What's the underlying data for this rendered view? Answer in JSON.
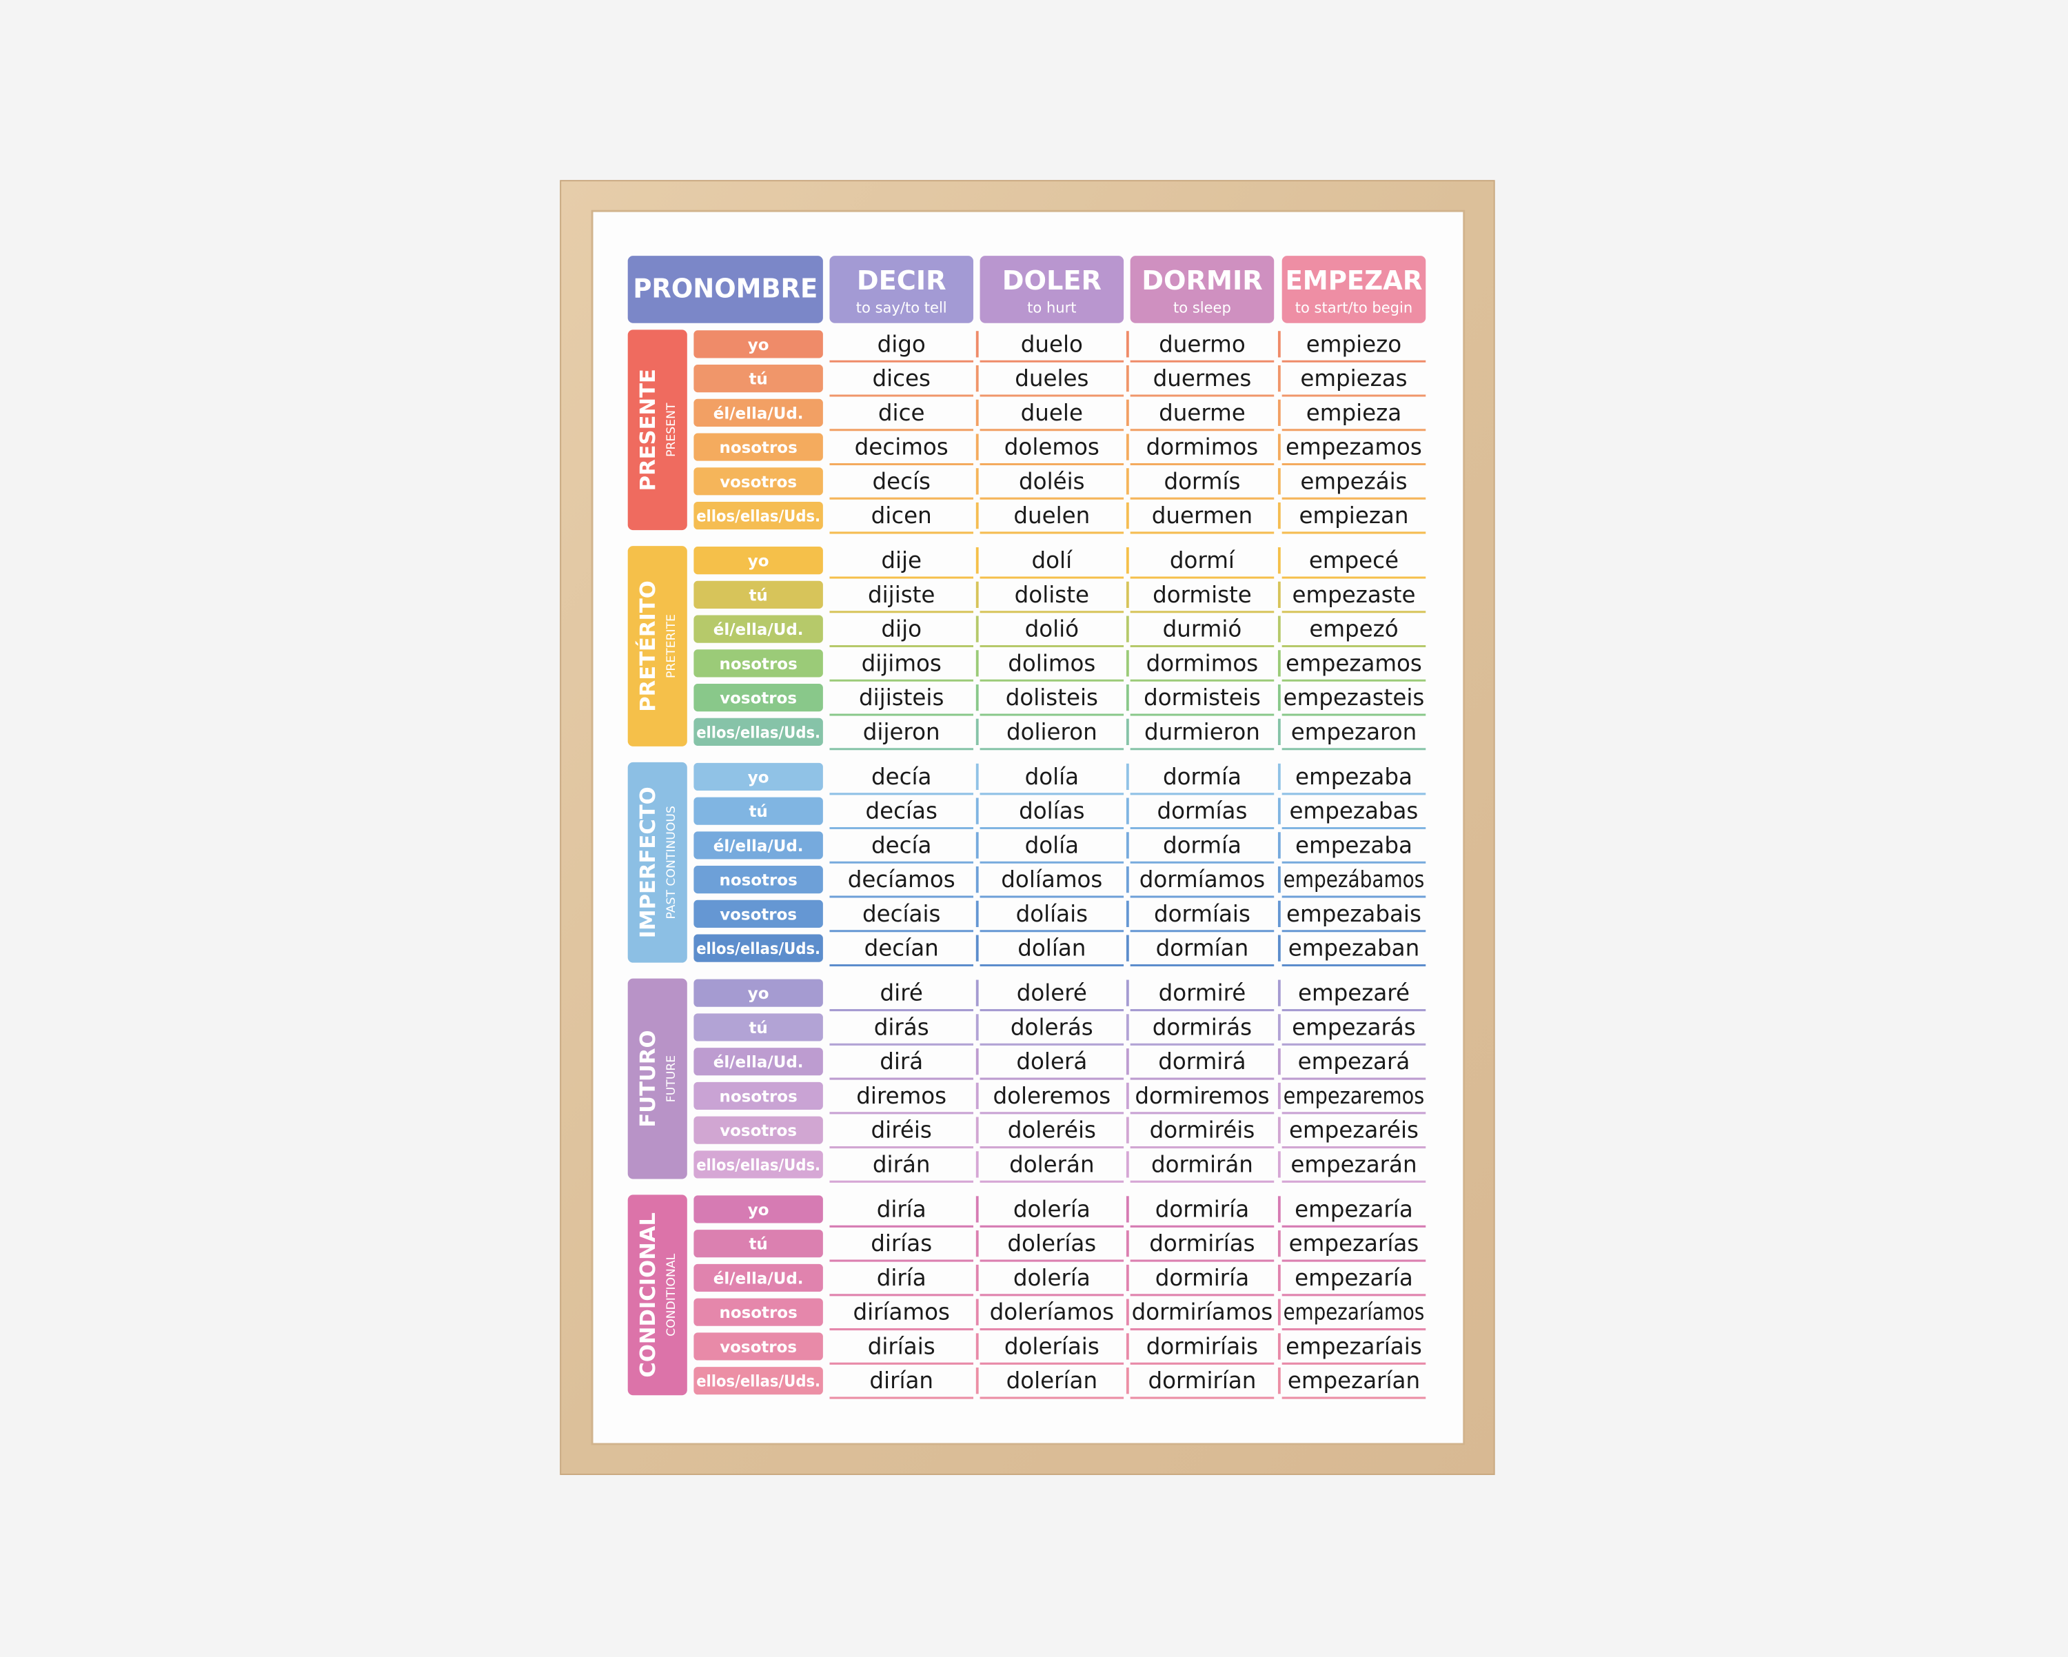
{
  "header": {
    "pronoun_title": "PRONOMBRE",
    "verbs": [
      {
        "name": "DECIR",
        "translation": "to say/to tell"
      },
      {
        "name": "DOLER",
        "translation": "to hurt"
      },
      {
        "name": "DORMIR",
        "translation": "to sleep"
      },
      {
        "name": "EMPEZAR",
        "translation": "to start/to begin"
      }
    ]
  },
  "tenses": [
    {
      "name": "PRESENTE",
      "english": "PRESENT",
      "rows": [
        {
          "pronoun": "yo",
          "forms": [
            "digo",
            "duelo",
            "duermo",
            "empiezo"
          ]
        },
        {
          "pronoun": "tú",
          "forms": [
            "dices",
            "dueles",
            "duermes",
            "empiezas"
          ]
        },
        {
          "pronoun": "él/ella/Ud.",
          "forms": [
            "dice",
            "duele",
            "duerme",
            "empieza"
          ]
        },
        {
          "pronoun": "nosotros",
          "forms": [
            "decimos",
            "dolemos",
            "dormimos",
            "empezamos"
          ]
        },
        {
          "pronoun": "vosotros",
          "forms": [
            "decís",
            "doléis",
            "dormís",
            "empezáis"
          ]
        },
        {
          "pronoun": "ellos/ellas/Uds.",
          "forms": [
            "dicen",
            "duelen",
            "duermen",
            "empiezan"
          ]
        }
      ]
    },
    {
      "name": "PRETÉRITO",
      "english": "PRETERITE",
      "rows": [
        {
          "pronoun": "yo",
          "forms": [
            "dije",
            "dolí",
            "dormí",
            "empecé"
          ]
        },
        {
          "pronoun": "tú",
          "forms": [
            "dijiste",
            "doliste",
            "dormiste",
            "empezaste"
          ]
        },
        {
          "pronoun": "él/ella/Ud.",
          "forms": [
            "dijo",
            "dolió",
            "durmió",
            "empezó"
          ]
        },
        {
          "pronoun": "nosotros",
          "forms": [
            "dijimos",
            "dolimos",
            "dormimos",
            "empezamos"
          ]
        },
        {
          "pronoun": "vosotros",
          "forms": [
            "dijisteis",
            "dolisteis",
            "dormisteis",
            "empezasteis"
          ]
        },
        {
          "pronoun": "ellos/ellas/Uds.",
          "forms": [
            "dijeron",
            "dolieron",
            "durmieron",
            "empezaron"
          ]
        }
      ]
    },
    {
      "name": "IMPERFECTO",
      "english": "PAST CONTINUOUS",
      "rows": [
        {
          "pronoun": "yo",
          "forms": [
            "decía",
            "dolía",
            "dormía",
            "empezaba"
          ]
        },
        {
          "pronoun": "tú",
          "forms": [
            "decías",
            "dolías",
            "dormías",
            "empezabas"
          ]
        },
        {
          "pronoun": "él/ella/Ud.",
          "forms": [
            "decía",
            "dolía",
            "dormía",
            "empezaba"
          ]
        },
        {
          "pronoun": "nosotros",
          "forms": [
            "decíamos",
            "dolíamos",
            "dormíamos",
            "empezábamos"
          ]
        },
        {
          "pronoun": "vosotros",
          "forms": [
            "decíais",
            "dolíais",
            "dormíais",
            "empezabais"
          ]
        },
        {
          "pronoun": "ellos/ellas/Uds.",
          "forms": [
            "decían",
            "dolían",
            "dormían",
            "empezaban"
          ]
        }
      ]
    },
    {
      "name": "FUTURO",
      "english": "FUTURE",
      "rows": [
        {
          "pronoun": "yo",
          "forms": [
            "diré",
            "doleré",
            "dormiré",
            "empezaré"
          ]
        },
        {
          "pronoun": "tú",
          "forms": [
            "dirás",
            "dolerás",
            "dormirás",
            "empezarás"
          ]
        },
        {
          "pronoun": "él/ella/Ud.",
          "forms": [
            "dirá",
            "dolerá",
            "dormirá",
            "empezará"
          ]
        },
        {
          "pronoun": "nosotros",
          "forms": [
            "diremos",
            "doleremos",
            "dormiremos",
            "empezaremos"
          ]
        },
        {
          "pronoun": "vosotros",
          "forms": [
            "diréis",
            "doleréis",
            "dormiréis",
            "empezaréis"
          ]
        },
        {
          "pronoun": "ellos/ellas/Uds.",
          "forms": [
            "dirán",
            "dolerán",
            "dormirán",
            "empezarán"
          ]
        }
      ]
    },
    {
      "name": "CONDICIONAL",
      "english": "CONDITIONAL",
      "rows": [
        {
          "pronoun": "yo",
          "forms": [
            "diría",
            "dolería",
            "dormiría",
            "empezaría"
          ]
        },
        {
          "pronoun": "tú",
          "forms": [
            "dirías",
            "dolerías",
            "dormirías",
            "empezarías"
          ]
        },
        {
          "pronoun": "él/ella/Ud.",
          "forms": [
            "diría",
            "dolería",
            "dormiría",
            "empezaría"
          ]
        },
        {
          "pronoun": "nosotros",
          "forms": [
            "diríamos",
            "doleríamos",
            "dormiríamos",
            "empezaríamos"
          ]
        },
        {
          "pronoun": "vosotros",
          "forms": [
            "diríais",
            "doleríais",
            "dormiríais",
            "empezaríais"
          ]
        },
        {
          "pronoun": "ellos/ellas/Uds.",
          "forms": [
            "dirían",
            "dolerían",
            "dormirían",
            "empezarían"
          ]
        }
      ]
    }
  ]
}
